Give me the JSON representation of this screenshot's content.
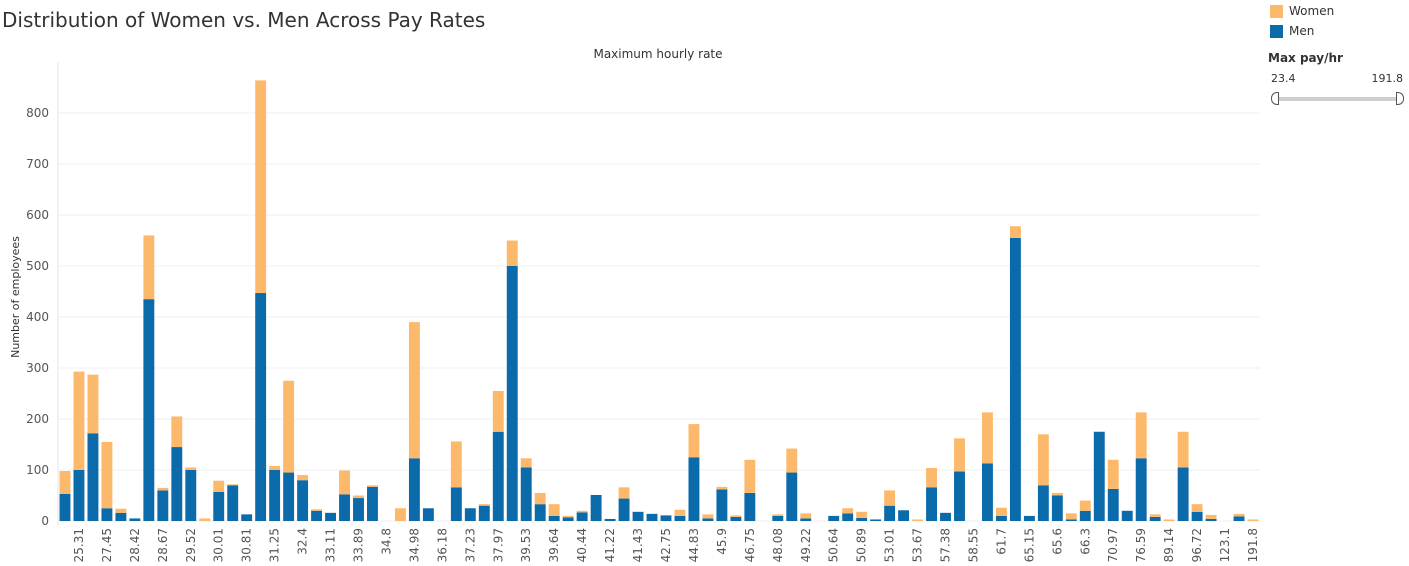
{
  "page_title": "Distribution of Women vs. Men Across Pay Rates",
  "legend": [
    {
      "label": "Women",
      "color": "#FDB96B"
    },
    {
      "label": "Men",
      "color": "#0B6AAA"
    }
  ],
  "filter": {
    "title": "Max pay/hr",
    "min_label": "23.4",
    "max_label": "191.8",
    "selected_low": 23.4,
    "selected_high": 191.8
  },
  "chart_data": {
    "type": "bar",
    "stacked": true,
    "title": "Maximum hourly rate",
    "xlabel": "",
    "ylabel": "Number of employees",
    "ylim": [
      0,
      900
    ],
    "yticks": [
      0,
      100,
      200,
      300,
      400,
      500,
      600,
      700,
      800
    ],
    "grid": true,
    "legend_position": "top-right",
    "categories": [
      "",
      "25.31",
      "",
      "27.45",
      "",
      "28.42",
      "",
      "28.67",
      "",
      "29.52",
      "",
      "30.01",
      "",
      "30.81",
      "",
      "31.25",
      "",
      "32.4",
      "",
      "33.11",
      "",
      "33.89",
      "",
      "34.8",
      "",
      "34.98",
      "",
      "36.18",
      "",
      "37.23",
      "",
      "37.97",
      "",
      "39.53",
      "",
      "39.64",
      "",
      "40.44",
      "",
      "41.22",
      "",
      "41.43",
      "",
      "42.75",
      "",
      "44.83",
      "",
      "45.9",
      "",
      "46.75",
      "",
      "48.08",
      "",
      "49.22",
      "",
      "50.64",
      "",
      "50.89",
      "",
      "53.01",
      "",
      "53.67",
      "",
      "57.38",
      "",
      "58.55",
      "",
      "61.7",
      "",
      "65.15",
      "",
      "65.6",
      "",
      "66.3",
      "",
      "70.97",
      "",
      "76.59",
      "",
      "89.14",
      "",
      "96.72",
      "",
      "123.1",
      "",
      "191.8"
    ],
    "series": [
      {
        "name": "Men",
        "color": "#0B6AAA",
        "values": [
          53,
          100,
          172,
          25,
          16,
          5,
          435,
          60,
          145,
          100,
          0,
          57,
          70,
          13,
          447,
          100,
          95,
          80,
          20,
          16,
          52,
          45,
          67,
          0,
          0,
          123,
          25,
          0,
          66,
          25,
          30,
          175,
          500,
          105,
          33,
          10,
          7,
          17,
          51,
          4,
          44,
          18,
          14,
          11,
          10,
          125,
          5,
          62,
          8,
          55,
          0,
          10,
          95,
          5,
          0,
          10,
          15,
          6,
          3,
          30,
          21,
          0,
          66,
          16,
          97,
          0,
          113,
          10,
          555,
          10,
          70,
          50,
          3,
          20,
          175,
          63,
          20,
          123,
          8,
          0,
          105,
          18,
          4,
          0,
          9,
          0
        ]
      },
      {
        "name": "Women",
        "color": "#FDB96B",
        "values": [
          45,
          193,
          115,
          130,
          8,
          0,
          125,
          5,
          60,
          5,
          5,
          22,
          2,
          0,
          417,
          8,
          180,
          10,
          3,
          0,
          47,
          5,
          3,
          0,
          25,
          267,
          0,
          0,
          90,
          0,
          3,
          80,
          50,
          18,
          22,
          23,
          3,
          3,
          0,
          0,
          22,
          0,
          0,
          0,
          12,
          65,
          8,
          5,
          3,
          65,
          0,
          3,
          47,
          10,
          0,
          0,
          10,
          12,
          0,
          30,
          0,
          3,
          38,
          0,
          65,
          0,
          100,
          16,
          23,
          0,
          100,
          5,
          12,
          20,
          0,
          57,
          0,
          90,
          5,
          3,
          70,
          15,
          8,
          0,
          5,
          3
        ]
      }
    ]
  }
}
